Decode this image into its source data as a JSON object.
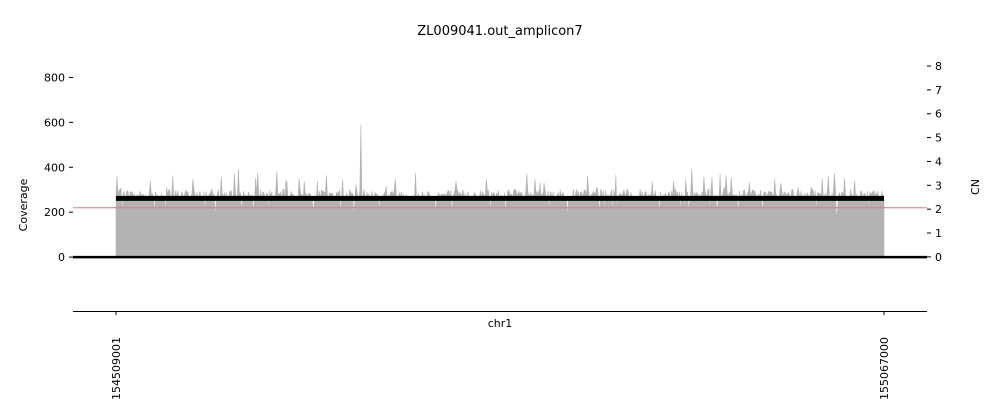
{
  "chart_data": {
    "type": "area",
    "title": "ZL009041.out_amplicon7",
    "xlabel": "chr1",
    "ylabel": "Coverage",
    "y2label": "CN",
    "x_range": [
      154509001,
      155067000
    ],
    "x_ticks": [
      "154509001",
      "155067000"
    ],
    "ylim": [
      -240,
      940
    ],
    "yticks": [
      "0",
      "200",
      "400",
      "600",
      "800"
    ],
    "y2lim": [
      -2.27,
      8.84
    ],
    "y2ticks": [
      "0",
      "1",
      "2",
      "3",
      "4",
      "5",
      "6",
      "7",
      "8"
    ],
    "grid": false,
    "coverage_color": "#b3b3b3",
    "coverage_profile": {
      "region": [
        154509001,
        155067000
      ],
      "typical_coverage": 275,
      "max_peak_around": [
        154687000,
        590
      ],
      "dip_values_around": 175
    },
    "series": [
      {
        "kind": "segment",
        "axis": "cn",
        "color": "#000000",
        "x": [
          154509001,
          155067000
        ],
        "y": [
          2.45,
          2.45
        ]
      },
      {
        "kind": "reference-line",
        "axis": "coverage",
        "color": "#e07a7a",
        "y": 220
      }
    ]
  }
}
